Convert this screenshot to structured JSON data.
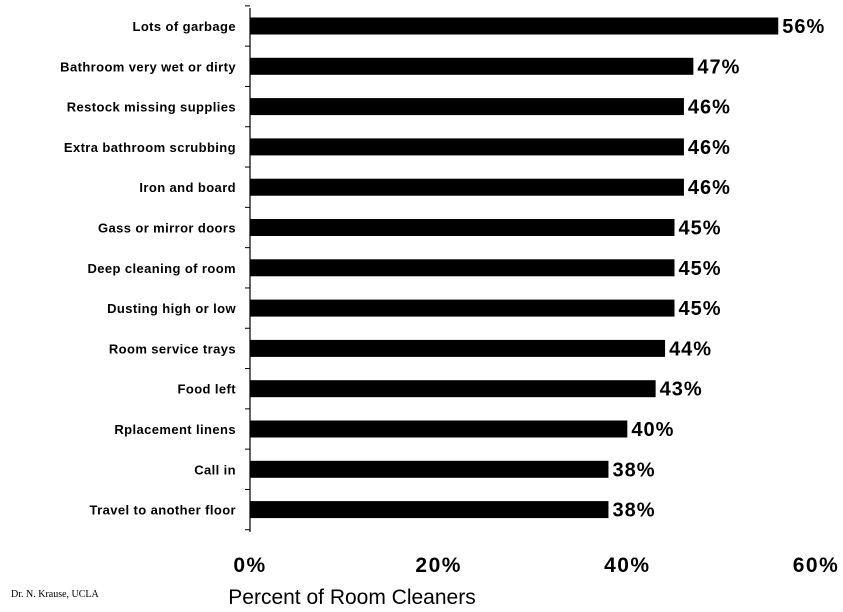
{
  "chart_data": {
    "type": "bar",
    "orientation": "horizontal",
    "categories": [
      "Lots of garbage",
      "Bathroom very wet or dirty",
      "Restock missing supplies",
      "Extra bathroom scrubbing",
      "Iron and board",
      "Gass or mirror doors",
      "Deep cleaning of room",
      "Dusting high or low",
      "Room service trays",
      "Food left",
      "Rplacement linens",
      "Call in",
      "Travel to another floor"
    ],
    "values": [
      56,
      47,
      46,
      46,
      46,
      45,
      45,
      45,
      44,
      43,
      40,
      38,
      38
    ],
    "value_labels": [
      "56%",
      "47%",
      "46%",
      "46%",
      "46%",
      "45%",
      "45%",
      "45%",
      "44%",
      "43%",
      "40%",
      "38%",
      "38%"
    ],
    "xlim": [
      0,
      60
    ],
    "xticks": [
      0,
      20,
      40,
      60
    ],
    "xtick_labels": [
      "0%",
      "20%",
      "40%",
      "60%"
    ],
    "xlabel": "Percent of Room Cleaners",
    "ylabel": "",
    "grid": false,
    "bar_color": "#000000"
  },
  "footer": {
    "credit": "Dr. N. Krause, UCLA"
  }
}
